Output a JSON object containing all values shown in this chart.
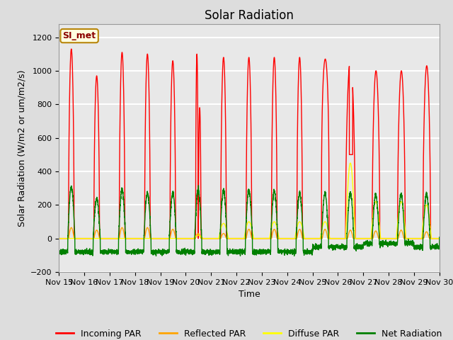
{
  "title": "Solar Radiation",
  "ylabel": "Solar Radiation (W/m2 or um/m2/s)",
  "xlabel": "Time",
  "ylim": [
    -200,
    1280
  ],
  "yticks": [
    -200,
    0,
    200,
    400,
    600,
    800,
    1000,
    1200
  ],
  "xlim": [
    0,
    15
  ],
  "xtick_labels": [
    "Nov 15",
    "Nov 16",
    "Nov 17",
    "Nov 18",
    "Nov 19",
    "Nov 20",
    "Nov 21",
    "Nov 22",
    "Nov 23",
    "Nov 24",
    "Nov 25",
    "Nov 26",
    "Nov 27",
    "Nov 28",
    "Nov 29",
    "Nov 30"
  ],
  "station_label": "SI_met",
  "line_colors": {
    "incoming": "red",
    "reflected": "orange",
    "diffuse": "yellow",
    "net": "green"
  },
  "legend_labels": [
    "Incoming PAR",
    "Reflected PAR",
    "Diffuse PAR",
    "Net Radiation"
  ],
  "bg_color": "#dddddd",
  "plot_bg_color": "#e8e8e8",
  "grid_color": "#cccccc",
  "title_fontsize": 12,
  "label_fontsize": 9,
  "tick_fontsize": 8
}
